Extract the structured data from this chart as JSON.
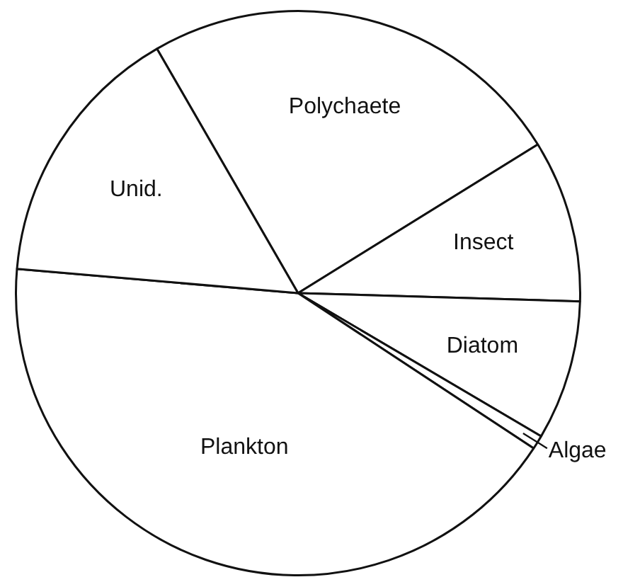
{
  "chart_data": {
    "type": "pie",
    "categories": [
      "Polychaete",
      "Insect",
      "Diatom",
      "Algae",
      "Plankton",
      "Unid."
    ],
    "values": [
      24.5,
      9.3,
      8.0,
      0.8,
      42.1,
      15.3
    ],
    "colors": [
      "#ffffff",
      "#ffffff",
      "#ffffff",
      "#ffffff",
      "#ffffff",
      "#ffffff"
    ]
  }
}
